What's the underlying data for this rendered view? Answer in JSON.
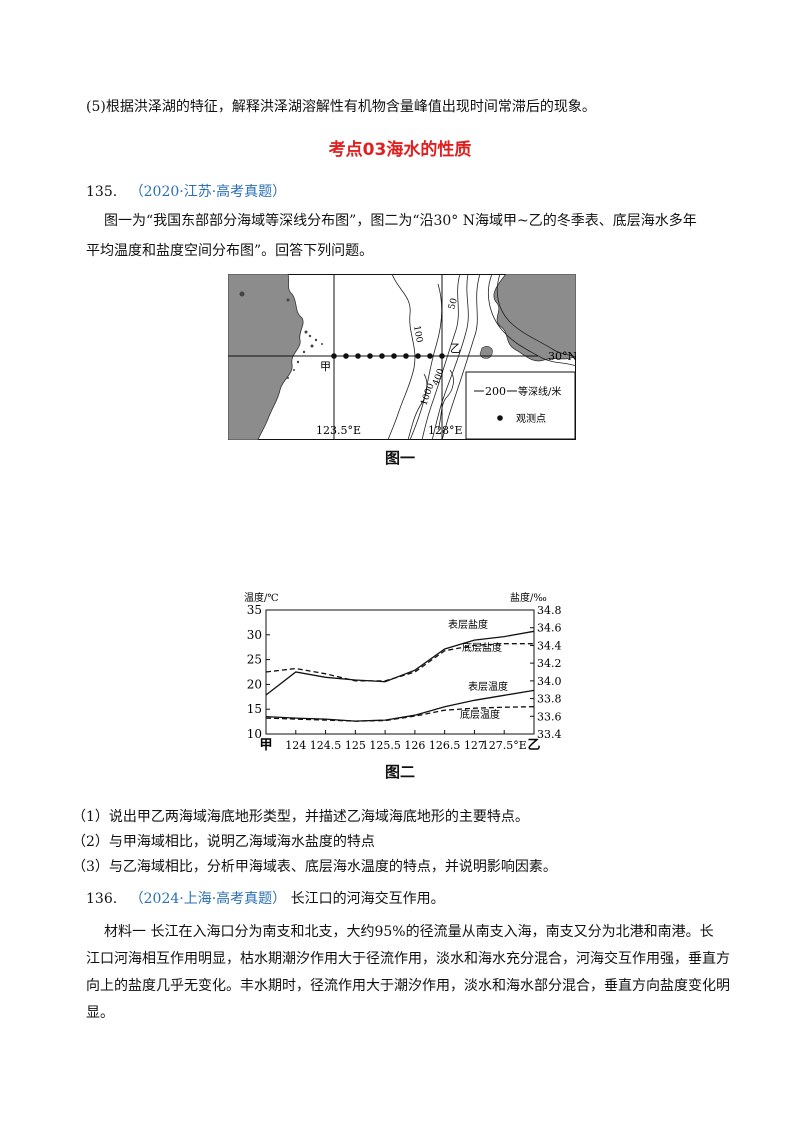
{
  "q5": "(5)根据洪泽湖的特征，解释洪泽湖溶解性有机物含量峰值出现时间常滞后的现象。",
  "section_title": "考点03海水的性质",
  "q135": {
    "number": "135.",
    "source": "（2020·江苏·高考真题）",
    "intro_line1": "图一为“我国东部部分海域等深线分布图”，图二为“沿30° N海域甲~乙的冬季表、底层海水多年",
    "intro_line2": "平均温度和盐度空间分布图”。回答下列问题。",
    "fig1": {
      "caption": "图一",
      "label_30n": "30°N",
      "label_jia": "甲",
      "label_yi": "乙",
      "label_lon1": "123.5°E",
      "label_lon2": "128°E",
      "contour_100": "100",
      "contour_50": "50",
      "contour_1000": "1000",
      "contour_400": "400",
      "legend_contour": "200",
      "legend_contour_text": "等深线/米",
      "legend_point_text": "观测点"
    },
    "fig2": {
      "caption": "图二"
    },
    "q1": "（1）说出甲乙两海域海底地形类型，并描述乙海域海底地形的主要特点。",
    "q2": "（2）与甲海域相比，说明乙海域海水盐度的特点",
    "q3": "（3）与乙海域相比，分析甲海域表、底层海水温度的特点，并说明影响因素。"
  },
  "q136": {
    "number": "136.",
    "source": "（2024·上海·高考真题）",
    "title": "长江口的河海交互作用。",
    "para_line1": "材料一  长江在入海口分为南支和北支，大约95%的径流量从南支入海，南支又分为北港和南港。长",
    "para_line2": "江口河海相互作用明显，枯水期潮汐作用大于径流作用，淡水和海水充分混合，河海交互作用强，垂直方",
    "para_line3": "向上的盐度几乎无变化。丰水期时，径流作用大于潮汐作用，淡水和海水部分混合，垂直方向盐度变化明",
    "para_line4": "显。"
  },
  "chart_data": {
    "type": "line",
    "xlabel": "",
    "x_tick_labels": [
      "甲",
      "124",
      "124.5",
      "125",
      "125.5",
      "126",
      "126.5",
      "127",
      "127.5°E",
      "乙"
    ],
    "x": [
      123.5,
      124,
      124.5,
      125,
      125.5,
      126,
      126.5,
      127,
      127.5,
      128
    ],
    "left_axis": {
      "label": "温度/℃",
      "range": [
        10,
        35
      ],
      "ticks": [
        10,
        15,
        20,
        25,
        30,
        35
      ]
    },
    "right_axis": {
      "label": "盐度/‰",
      "range": [
        33.4,
        34.8
      ],
      "ticks": [
        33.4,
        33.6,
        33.8,
        34.0,
        34.2,
        34.4,
        34.6,
        34.8
      ]
    },
    "series": [
      {
        "name": "表层盐度",
        "axis": "right",
        "style": "solid",
        "values": [
          33.84,
          34.1,
          34.04,
          34.01,
          33.99,
          34.12,
          34.36,
          34.46,
          34.5,
          34.56
        ]
      },
      {
        "name": "底层盐度",
        "axis": "right",
        "style": "dashed",
        "values": [
          34.1,
          34.14,
          34.08,
          34.0,
          34.0,
          34.1,
          34.34,
          34.4,
          34.42,
          34.42
        ]
      },
      {
        "name": "表层温度",
        "axis": "left",
        "style": "solid",
        "values": [
          13.5,
          13.2,
          13.0,
          12.6,
          12.8,
          13.8,
          15.5,
          16.8,
          17.8,
          18.8
        ]
      },
      {
        "name": "底层温度",
        "axis": "left",
        "style": "dashed",
        "values": [
          13.2,
          13.0,
          12.8,
          12.6,
          12.7,
          13.6,
          14.8,
          15.2,
          15.4,
          15.5
        ]
      }
    ]
  }
}
